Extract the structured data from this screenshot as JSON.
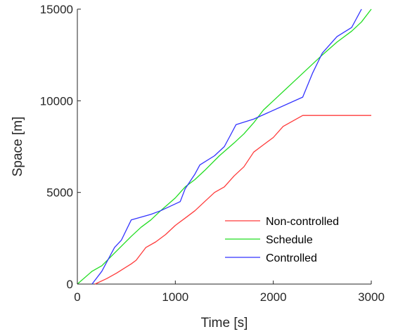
{
  "chart_data": {
    "type": "line",
    "title": "",
    "xlabel": "Time [s]",
    "ylabel": "Space [m]",
    "xlim": [
      0,
      3000
    ],
    "ylim": [
      0,
      15000
    ],
    "xticks": [
      0,
      1000,
      2000,
      3000
    ],
    "yticks": [
      0,
      5000,
      10000,
      15000
    ],
    "xtick_labels": [
      "0",
      "1000",
      "2000",
      "3000"
    ],
    "ytick_labels": [
      "0",
      "5000",
      "10000",
      "15000"
    ],
    "grid": false,
    "legend_position": "bottom-right",
    "series": [
      {
        "name": "Non-controlled",
        "color": "#ff3b3b",
        "points": [
          [
            180,
            0
          ],
          [
            300,
            300
          ],
          [
            400,
            600
          ],
          [
            550,
            1100
          ],
          [
            600,
            1300
          ],
          [
            700,
            2000
          ],
          [
            800,
            2300
          ],
          [
            900,
            2700
          ],
          [
            1000,
            3200
          ],
          [
            1100,
            3600
          ],
          [
            1200,
            4000
          ],
          [
            1300,
            4500
          ],
          [
            1400,
            5000
          ],
          [
            1500,
            5300
          ],
          [
            1600,
            5900
          ],
          [
            1700,
            6400
          ],
          [
            1800,
            7200
          ],
          [
            1900,
            7600
          ],
          [
            2000,
            8000
          ],
          [
            2100,
            8600
          ],
          [
            2300,
            9200
          ],
          [
            2500,
            9200
          ],
          [
            3000,
            9200
          ]
        ]
      },
      {
        "name": "Schedule",
        "color": "#22dd22",
        "points": [
          [
            0,
            0
          ],
          [
            150,
            700
          ],
          [
            250,
            1000
          ],
          [
            400,
            1800
          ],
          [
            550,
            2600
          ],
          [
            650,
            3100
          ],
          [
            750,
            3500
          ],
          [
            850,
            4000
          ],
          [
            1000,
            4700
          ],
          [
            1100,
            5300
          ],
          [
            1200,
            5700
          ],
          [
            1300,
            6200
          ],
          [
            1450,
            7000
          ],
          [
            1600,
            7700
          ],
          [
            1700,
            8200
          ],
          [
            1800,
            8800
          ],
          [
            1900,
            9500
          ],
          [
            2000,
            10000
          ],
          [
            2200,
            11000
          ],
          [
            2400,
            12000
          ],
          [
            2500,
            12500
          ],
          [
            2650,
            13200
          ],
          [
            2800,
            13800
          ],
          [
            2900,
            14300
          ],
          [
            3000,
            15000
          ]
        ]
      },
      {
        "name": "Controlled",
        "color": "#3333ff",
        "points": [
          [
            150,
            0
          ],
          [
            250,
            700
          ],
          [
            300,
            1200
          ],
          [
            380,
            2000
          ],
          [
            450,
            2400
          ],
          [
            550,
            3500
          ],
          [
            750,
            3800
          ],
          [
            850,
            4000
          ],
          [
            1050,
            4500
          ],
          [
            1100,
            5200
          ],
          [
            1200,
            6000
          ],
          [
            1250,
            6500
          ],
          [
            1400,
            7000
          ],
          [
            1500,
            7500
          ],
          [
            1550,
            8000
          ],
          [
            1620,
            8700
          ],
          [
            1800,
            9000
          ],
          [
            2300,
            10200
          ],
          [
            2400,
            11500
          ],
          [
            2500,
            12600
          ],
          [
            2650,
            13500
          ],
          [
            2800,
            14000
          ],
          [
            2850,
            14500
          ],
          [
            2900,
            15000
          ]
        ]
      }
    ]
  }
}
